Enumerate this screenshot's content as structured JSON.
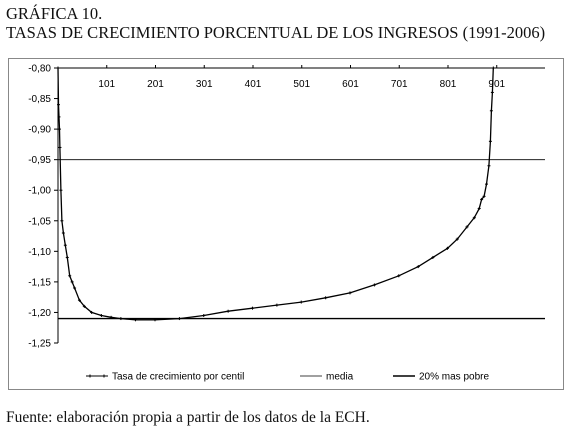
{
  "heading": {
    "line1": "GRÁFICA 10.",
    "line2": "TASAS DE CRECIMIENTO PORCENTUAL DE LOS INGRESOS (1991-2006)"
  },
  "source_note": "Fuente: elaboración propia a partir de los datos de la ECH.",
  "chart_data": {
    "type": "line",
    "title": "TASAS DE CRECIMIENTO PORCENTUAL DE LOS INGRESOS (1991-2006)",
    "xlabel": "",
    "ylabel": "",
    "xlim": [
      1,
      1000
    ],
    "ylim": [
      -1.25,
      -0.8
    ],
    "x_ticks": [
      101,
      201,
      301,
      401,
      501,
      601,
      701,
      801,
      901
    ],
    "x_tick_labels": [
      "101",
      "201",
      "301",
      "401",
      "501",
      "601",
      "701",
      "801",
      "901"
    ],
    "y_ticks": [
      -0.8,
      -0.85,
      -0.9,
      -0.95,
      -1.0,
      -1.05,
      -1.1,
      -1.15,
      -1.2,
      -1.25
    ],
    "y_tick_labels": [
      "-0,80",
      "-0,85",
      "-0,90",
      "-0,95",
      "-1,00",
      "-1,05",
      "-1,10",
      "-1,15",
      "-1,20",
      "-1,25"
    ],
    "grid": false,
    "legend_position": "bottom",
    "series": [
      {
        "name": "Tasa de crecimiento por centil",
        "kind": "line-markers",
        "color": "#000000",
        "points": [
          [
            1,
            -0.8
          ],
          [
            2,
            -0.86
          ],
          [
            3,
            -0.88
          ],
          [
            4,
            -0.9
          ],
          [
            5,
            -0.93
          ],
          [
            7,
            -1.0
          ],
          [
            9,
            -1.05
          ],
          [
            12,
            -1.07
          ],
          [
            16,
            -1.09
          ],
          [
            20,
            -1.11
          ],
          [
            25,
            -1.14
          ],
          [
            30,
            -1.15
          ],
          [
            35,
            -1.16
          ],
          [
            45,
            -1.18
          ],
          [
            55,
            -1.19
          ],
          [
            70,
            -1.2
          ],
          [
            90,
            -1.205
          ],
          [
            110,
            -1.208
          ],
          [
            130,
            -1.21
          ],
          [
            160,
            -1.212
          ],
          [
            200,
            -1.212
          ],
          [
            250,
            -1.21
          ],
          [
            300,
            -1.205
          ],
          [
            350,
            -1.198
          ],
          [
            400,
            -1.193
          ],
          [
            450,
            -1.188
          ],
          [
            500,
            -1.183
          ],
          [
            550,
            -1.176
          ],
          [
            600,
            -1.168
          ],
          [
            650,
            -1.155
          ],
          [
            700,
            -1.14
          ],
          [
            740,
            -1.125
          ],
          [
            770,
            -1.11
          ],
          [
            800,
            -1.095
          ],
          [
            820,
            -1.08
          ],
          [
            840,
            -1.06
          ],
          [
            855,
            -1.045
          ],
          [
            865,
            -1.03
          ],
          [
            870,
            -1.015
          ],
          [
            875,
            -1.01
          ],
          [
            880,
            -0.99
          ],
          [
            885,
            -0.96
          ],
          [
            888,
            -0.92
          ],
          [
            890,
            -0.87
          ],
          [
            892,
            -0.84
          ],
          [
            894,
            -0.8
          ]
        ]
      },
      {
        "name": "media",
        "kind": "hline",
        "color": "#000000",
        "value": -0.95
      },
      {
        "name": "20% mas pobre",
        "kind": "hline",
        "color": "#000000",
        "value": -1.21
      }
    ]
  }
}
